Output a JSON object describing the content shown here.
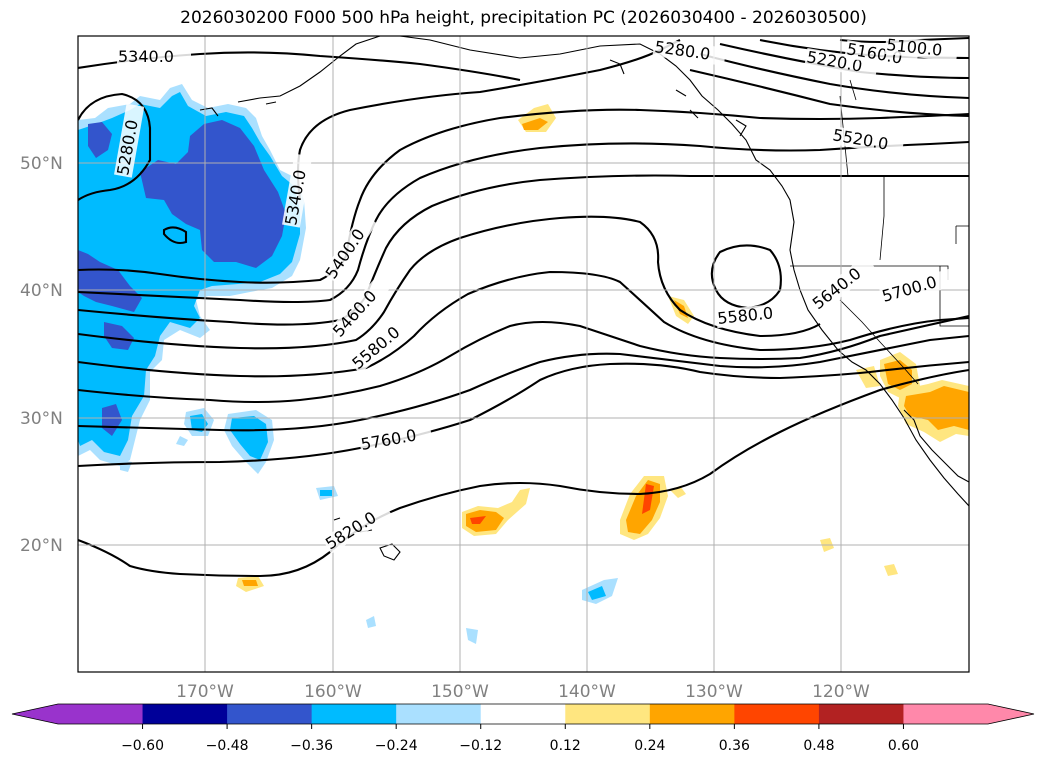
{
  "title": "2026030200 F000 500 hPa height, precipitation PC (2026030400 - 2026030500)",
  "latitude_labels": [
    "50°N",
    "40°N",
    "30°N",
    "20°N"
  ],
  "longitude_labels": [
    "170°W",
    "160°W",
    "150°W",
    "140°W",
    "130°W",
    "120°W"
  ],
  "contour_labels": [
    "5340.0",
    "5280.0",
    "5340.0",
    "5280.0",
    "5220.0",
    "5160.0",
    "5100.0",
    "5520.0",
    "5400.0",
    "5460.0",
    "5580.0",
    "5580.0",
    "5640.0",
    "5700.0",
    "5760.0",
    "5820.0"
  ],
  "colorbar": {
    "tick_labels": [
      "−0.60",
      "−0.48",
      "−0.36",
      "−0.24",
      "−0.12",
      "0.12",
      "0.24",
      "0.36",
      "0.48",
      "0.60"
    ],
    "colors": [
      "#9933cc",
      "#000099",
      "#3355cc",
      "#00bbff",
      "#aae0ff",
      "#ffffff",
      "#ffe680",
      "#ffa500",
      "#ff4500",
      "#b22222",
      "#ff88aa"
    ]
  },
  "chart_data": {
    "type": "contour_map",
    "title": "2026030200 F000 500 hPa height, precipitation PC (2026030400 - 2026030500)",
    "extent": {
      "lon": [
        -180,
        -110
      ],
      "lat": [
        10,
        60
      ]
    },
    "contour_levels": [
      5100,
      5160,
      5220,
      5280,
      5340,
      5400,
      5460,
      5520,
      5580,
      5640,
      5700,
      5760,
      5820
    ],
    "fill_levels": [
      -0.6,
      -0.48,
      -0.36,
      -0.24,
      -0.12,
      0.12,
      0.24,
      0.36,
      0.48,
      0.6
    ]
  }
}
